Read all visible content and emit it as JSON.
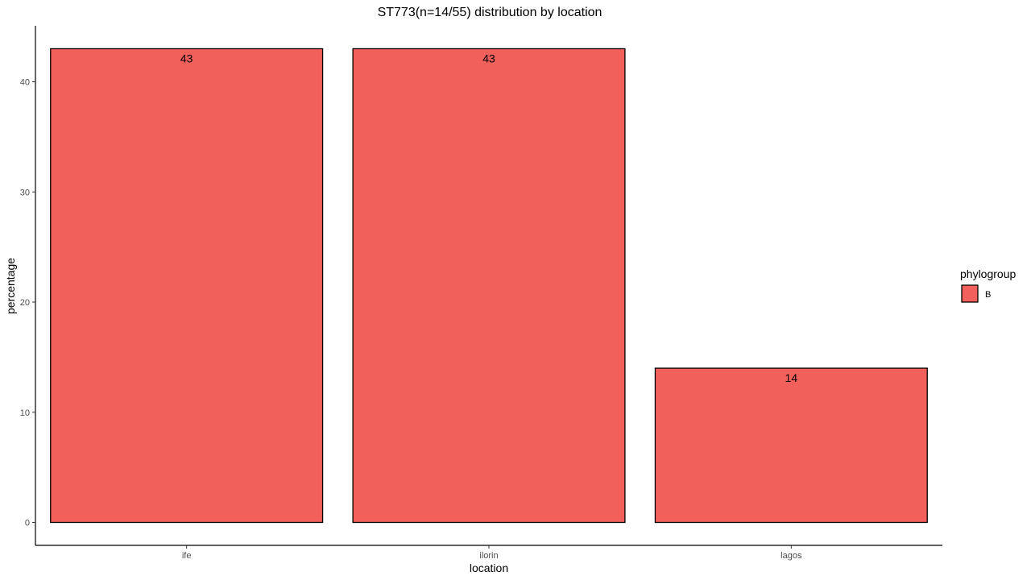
{
  "chart_data": {
    "type": "bar",
    "title": "ST773(n=14/55) distribution by location",
    "xlabel": "location",
    "ylabel": "percentage",
    "categories": [
      "ife",
      "ilorin",
      "lagos"
    ],
    "values": [
      43,
      43,
      14
    ],
    "data_labels": [
      "43",
      "43",
      "14"
    ],
    "ylim": [
      0,
      45
    ],
    "yticks": [
      0,
      10,
      20,
      30,
      40
    ],
    "ytick_labels": [
      "0",
      "10",
      "20",
      "30",
      "40"
    ],
    "grid": false,
    "legend": {
      "title": "phylogroup",
      "position": "right",
      "entries": [
        {
          "label": "B",
          "color": "#F2605B"
        }
      ]
    },
    "bar_color": "#F2605B",
    "bar_outline_color": "#000000"
  }
}
